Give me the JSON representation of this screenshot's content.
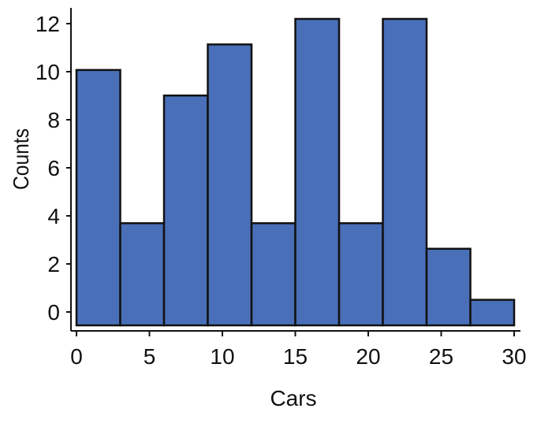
{
  "chart_data": {
    "type": "bar",
    "title": "",
    "xlabel": "Cars",
    "ylabel": "Counts",
    "xlim": [
      0,
      30
    ],
    "ylim": [
      0,
      12
    ],
    "x_ticks": [
      0,
      5,
      10,
      15,
      20,
      25,
      30
    ],
    "y_ticks": [
      0,
      2,
      4,
      6,
      8,
      10,
      12
    ],
    "bin_width": 3,
    "bins": [
      {
        "start": 0,
        "end": 3,
        "value": 10
      },
      {
        "start": 3,
        "end": 6,
        "value": 4
      },
      {
        "start": 6,
        "end": 9,
        "value": 9
      },
      {
        "start": 9,
        "end": 12,
        "value": 11
      },
      {
        "start": 12,
        "end": 15,
        "value": 4
      },
      {
        "start": 15,
        "end": 18,
        "value": 12
      },
      {
        "start": 18,
        "end": 21,
        "value": 4
      },
      {
        "start": 21,
        "end": 24,
        "value": 12
      },
      {
        "start": 24,
        "end": 27,
        "value": 3
      },
      {
        "start": 27,
        "end": 30,
        "value": 1
      }
    ],
    "bar_color": "#4A6FB9",
    "grid": false,
    "legend": "none"
  }
}
